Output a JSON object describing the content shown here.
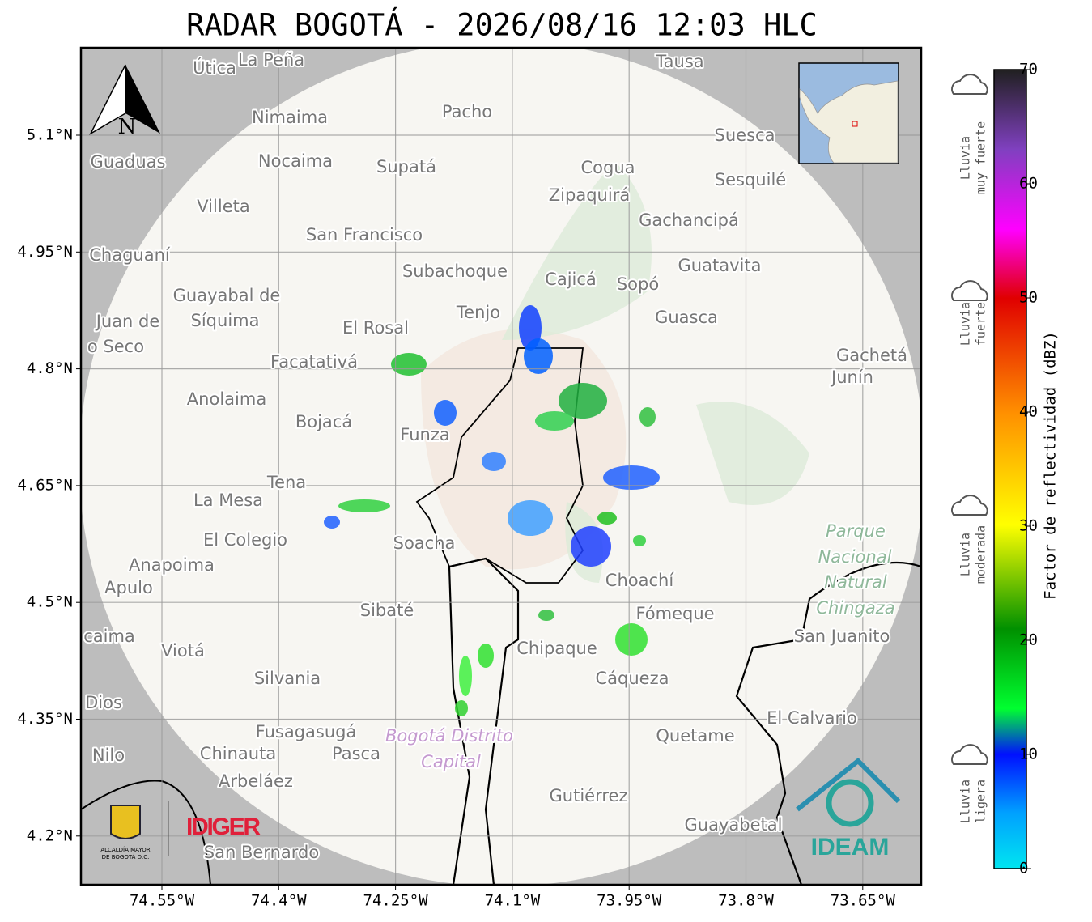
{
  "title": "RADAR BOGOTÁ - 2026/08/16 12:03 HLC",
  "map": {
    "lat_ticks": [
      {
        "value": 5.1,
        "label": "5.1°N"
      },
      {
        "value": 4.95,
        "label": "4.95°N"
      },
      {
        "value": 4.8,
        "label": "4.8°N"
      },
      {
        "value": 4.65,
        "label": "4.65°N"
      },
      {
        "value": 4.5,
        "label": "4.5°N"
      },
      {
        "value": 4.35,
        "label": "4.35°N"
      },
      {
        "value": 4.2,
        "label": "4.2°N"
      }
    ],
    "lon_ticks": [
      {
        "value": -74.55,
        "label": "74.55°W"
      },
      {
        "value": -74.4,
        "label": "74.4°W"
      },
      {
        "value": -74.25,
        "label": "74.25°W"
      },
      {
        "value": -74.1,
        "label": "74.1°W"
      },
      {
        "value": -73.95,
        "label": "73.95°W"
      },
      {
        "value": -73.8,
        "label": "73.8°W"
      },
      {
        "value": -73.65,
        "label": "73.65°W"
      }
    ],
    "places": [
      "Útica",
      "La Peña",
      "Tausa",
      "Pacho",
      "Nimaima",
      "Guaduas",
      "Nocaima",
      "Supatá",
      "Cogua",
      "Suesca",
      "Sesquilé",
      "Zipaquirá",
      "Villeta",
      "Gachancipá",
      "San Francisco",
      "Chaguaní",
      "Guatavita",
      "Subachoque",
      "Cajicá",
      "Sopó",
      "Guayabal de",
      "Síquima",
      "Juan de",
      "o Seco",
      "Tenjo",
      "El Rosal",
      "Guasca",
      "Facatativá",
      "Gachetá",
      "Junín",
      "Anolaima",
      "Bojacá",
      "Funza",
      "Tena",
      "La Mesa",
      "El Colegio",
      "Soacha",
      "Anapoima",
      "Apulo",
      "Choachí",
      "Sibaté",
      "Fómeque",
      "San Juanito",
      "caima",
      "Viotá",
      "Chipaque",
      "Silvania",
      "Cáqueza",
      "Dios",
      "El Calvario",
      "Fusagasugá",
      "Quetame",
      "Nilo",
      "Chinauta",
      "Pasca",
      "Arbeláez",
      "Gutiérrez",
      "Guayabetal",
      "San Bernardo"
    ],
    "park": [
      "Parque",
      "Nacional",
      "Natural",
      "Chingaza"
    ],
    "district": [
      "Bogotá Distrito",
      "Capital"
    ],
    "north": "N"
  },
  "colorbar": {
    "label": "Factor de reflectividad (dBZ)",
    "lim": [
      0,
      70
    ],
    "ticks": [
      0,
      10,
      20,
      30,
      40,
      50,
      60,
      70
    ]
  },
  "legend": [
    [
      "Lluvia",
      "muy fuerte"
    ],
    [
      "Lluvia",
      "fuerte"
    ],
    [
      "Lluvia",
      "moderada"
    ],
    [
      "Lluvia",
      "ligera"
    ]
  ],
  "logos": {
    "alcaldia": [
      "ALCALDÍA MAYOR",
      "DE BOGOTÁ D.C."
    ],
    "idiger": "IDIGER",
    "ideam": "IDEAM"
  }
}
